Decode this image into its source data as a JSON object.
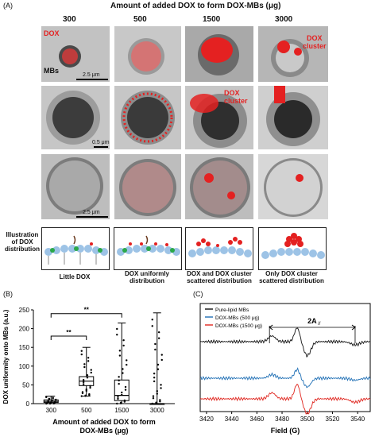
{
  "panel_A": {
    "letter": "(A)",
    "header": "Amount of added DOX to form DOX-MBs (μg)",
    "columns": [
      "300",
      "500",
      "1500",
      "3000"
    ],
    "annotations": {
      "dox": "DOX",
      "mbs": "MBs",
      "dox_cluster_1": "DOX",
      "dox_cluster_1b": "cluster",
      "dox_cluster_2": "DOX",
      "dox_cluster_2b": "cluster",
      "scale_1": "2.5 μm",
      "scale_2": "0.5 μm",
      "scale_3": "2.5 μm"
    },
    "illustration_label": [
      "Illustration",
      "of DOX",
      "distribution"
    ],
    "distribution_captions": [
      [
        "Little DOX"
      ],
      [
        "DOX uniformly",
        "distribution"
      ],
      [
        "DOX and DOX cluster",
        "scattered distribution"
      ],
      [
        "Only DOX cluster",
        "scattered distribution"
      ]
    ]
  },
  "panel_B": {
    "letter": "(B)",
    "significance": [
      "**",
      "**"
    ],
    "chart_data": {
      "type": "box",
      "ylabel": "DOX uniformity onto MBs (a.u.)",
      "xlabel": "Amount of added DOX to form DOX-MBs (μg)",
      "categories": [
        "300",
        "500",
        "1500",
        "3000"
      ],
      "yticks": [
        0,
        50,
        100,
        150,
        200,
        250
      ],
      "ylim": [
        0,
        250
      ],
      "boxes": [
        {
          "category": "300",
          "min": 0,
          "q1": 3,
          "median": 6,
          "q3": 10,
          "max": 20
        },
        {
          "category": "500",
          "min": 20,
          "q1": 48,
          "median": 60,
          "q3": 72,
          "max": 150
        },
        {
          "category": "1500",
          "min": 0,
          "q1": 8,
          "median": 22,
          "q3": 63,
          "max": 215
        },
        {
          "category": "3000",
          "min": 0,
          "q1": 0,
          "median": 0,
          "q3": 0,
          "max": 242
        }
      ]
    }
  },
  "panel_C": {
    "letter": "(C)",
    "delta_label": "2A",
    "delta_sub": "//",
    "chart_data": {
      "type": "line",
      "xlabel": "Field (G)",
      "xticks": [
        3420,
        3440,
        3460,
        3480,
        3500,
        3520,
        3540
      ],
      "xlim": [
        3415,
        3550
      ],
      "series": [
        {
          "name": "Pure-lipid MBs",
          "color": "#111111"
        },
        {
          "name": "DOX-MBs (500 μg)",
          "color": "#1f6fb5"
        },
        {
          "name": "DOX-MBs (1500 μg)",
          "color": "#e0261f"
        }
      ],
      "markers": [
        3470,
        3538
      ]
    }
  }
}
